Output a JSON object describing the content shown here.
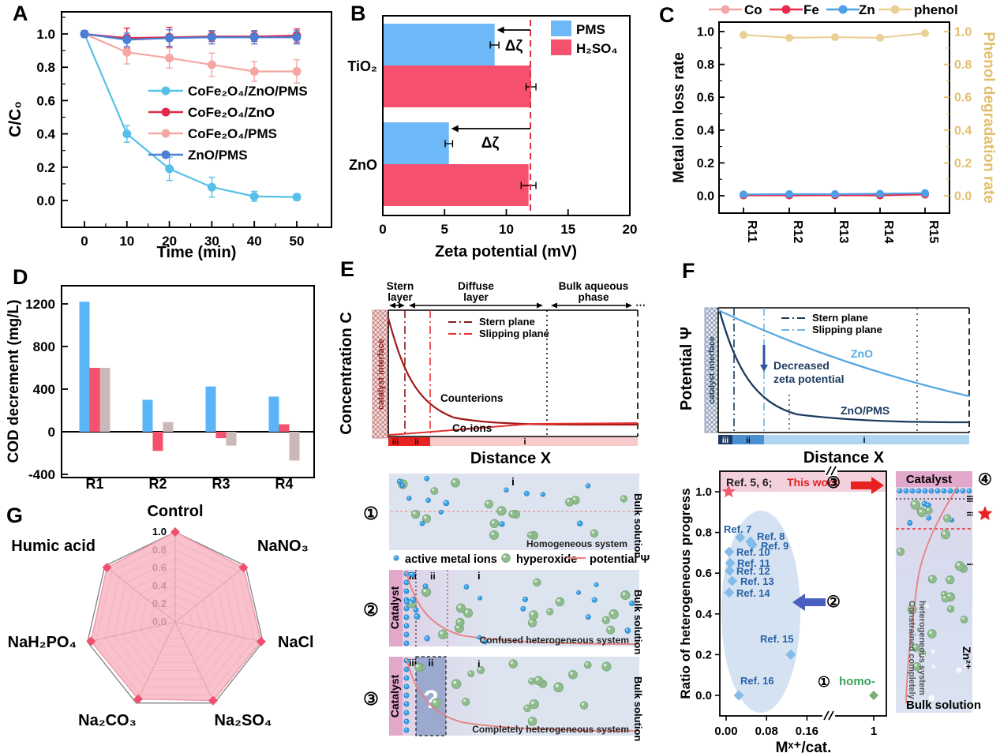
{
  "figure_labels": {
    "A": "A",
    "B": "B",
    "C": "C",
    "D": "D",
    "E": "E",
    "F": "F",
    "G": "G"
  },
  "colors": {
    "counterions": "#a31818",
    "co_ions": "#e23232",
    "stern_plane_red": "#8b1a1a",
    "slipping_plane_red": "#e83030",
    "zno": "#58a8e0",
    "zno_pms": "#1b3a5e",
    "stern_plane_blue": "#1b3a5e",
    "slipping_plane_blue": "#6db4e8",
    "metal_ion_dot": "#35a2ea",
    "hyperoxide_dot": "#8fbc8f",
    "potential_line": "#e88080",
    "dashed_guide": "#e03048",
    "zone_bar_red": "#e62222",
    "zone_bar_pink": "#f8caca",
    "zone_iii_navy": "#1b3a5e",
    "zone_ii_blue": "#4a90d0",
    "zone_i_light": "#aed5f2",
    "band_pink": "#f2d0dc",
    "highlight_red": "#e82020",
    "arrow_blue": "#4a5fc0",
    "ellipse_blue": "#cdddee",
    "strip_catalyst": "#e2a8cc",
    "question_zone": "#93a3cc"
  },
  "chart_data": [
    {
      "id": "A",
      "type": "line",
      "xlabel": "Time (min)",
      "ylabel": "C/C₀",
      "x": [
        0,
        10,
        20,
        30,
        40,
        50
      ],
      "xticks": [
        0,
        10,
        20,
        30,
        40,
        50
      ],
      "yticks": [
        0.0,
        0.2,
        0.4,
        0.6,
        0.8,
        1.0
      ],
      "ylim": [
        -0.08,
        1.12
      ],
      "series": [
        {
          "name": "CoFe₂O₄/ZnO/PMS",
          "color": "#56c1e8",
          "values": [
            1.0,
            0.4,
            0.19,
            0.08,
            0.025,
            0.02
          ],
          "err": [
            0.02,
            0.05,
            0.07,
            0.06,
            0.03,
            0.02
          ]
        },
        {
          "name": "CoFe₂O₄/ZnO",
          "color": "#e02948",
          "values": [
            1.0,
            0.975,
            0.98,
            0.985,
            0.985,
            0.99
          ],
          "err": [
            0.02,
            0.06,
            0.06,
            0.03,
            0.03,
            0.04
          ]
        },
        {
          "name": "CoFe₂O₄/PMS",
          "color": "#f4a7a3",
          "values": [
            1.0,
            0.89,
            0.855,
            0.815,
            0.775,
            0.775
          ],
          "err": [
            0.02,
            0.07,
            0.06,
            0.07,
            0.06,
            0.07
          ]
        },
        {
          "name": "ZnO/PMS",
          "color": "#4a7fd4",
          "values": [
            1.0,
            0.965,
            0.975,
            0.98,
            0.98,
            0.98
          ],
          "err": [
            0.02,
            0.04,
            0.05,
            0.04,
            0.04,
            0.04
          ]
        }
      ]
    },
    {
      "id": "B",
      "type": "barh",
      "xlabel": "Zeta potential (mV)",
      "xticks": [
        0,
        5,
        10,
        15,
        20
      ],
      "xlim": [
        0,
        20
      ],
      "categories": [
        "TiO₂",
        "ZnO"
      ],
      "series": [
        {
          "name": "PMS",
          "color": "#6db9f7",
          "values": [
            9.05,
            5.35
          ],
          "err": [
            0.35,
            0.3
          ]
        },
        {
          "name": "H₂SO₄",
          "color": "#f5506e",
          "values": [
            12.0,
            11.8
          ],
          "err": [
            0.4,
            0.6
          ]
        }
      ],
      "dash_line_x": 11.95,
      "delta_label": "Δζ"
    },
    {
      "id": "C",
      "type": "line",
      "categories": [
        "R11",
        "R12",
        "R13",
        "R14",
        "R15"
      ],
      "ylabel_left": "Metal ion loss rate",
      "ylabel_right": "Phenol degradation rate",
      "yticks": [
        0.0,
        0.2,
        0.4,
        0.6,
        0.8,
        1.0
      ],
      "right_axis_color": "#e2bf6e",
      "series": [
        {
          "name": "Co",
          "color": "#f2a8a8",
          "values": [
            0.004,
            0.003,
            0.004,
            0.003,
            0.004
          ],
          "axis": "left"
        },
        {
          "name": "Fe",
          "color": "#e82948",
          "values": [
            0.002,
            0.002,
            0.003,
            0.002,
            0.01
          ],
          "axis": "left"
        },
        {
          "name": "Zn",
          "color": "#4d9fe8",
          "values": [
            0.008,
            0.01,
            0.01,
            0.012,
            0.016
          ],
          "axis": "left"
        },
        {
          "name": "phenol",
          "color": "#e9d196",
          "values": [
            0.98,
            0.962,
            0.966,
            0.962,
            0.99
          ],
          "axis": "right"
        }
      ]
    },
    {
      "id": "D",
      "type": "bar",
      "ylabel": "COD decrement (mg/L)",
      "categories": [
        "R1",
        "R2",
        "R3",
        "R4"
      ],
      "yticks": [
        -400,
        0,
        400,
        800,
        1200
      ],
      "ylim": [
        -430,
        1400
      ],
      "series": [
        {
          "name": "series-blue",
          "color": "#5bb4f5",
          "values": [
            1220,
            300,
            425,
            330
          ]
        },
        {
          "name": "series-red",
          "color": "#f5506e",
          "values": [
            600,
            -180,
            -60,
            70
          ]
        },
        {
          "name": "series-gray",
          "color": "#cbb9b9",
          "values": [
            600,
            90,
            -130,
            -270
          ]
        }
      ]
    },
    {
      "id": "G",
      "type": "radar",
      "categories": [
        "Control",
        "NaNO₃",
        "NaCl",
        "Na₂SO₄",
        "Na₂CO₃",
        "NaH₂PO₄",
        "Humic acid"
      ],
      "values": [
        1.0,
        0.97,
        0.98,
        0.97,
        0.95,
        0.96,
        0.97
      ],
      "tick_labels": [
        "0.0",
        "0.2",
        "0.4",
        "0.6",
        "0.8",
        "1.0"
      ],
      "fill_color": "#f7b3c0",
      "marker_color": "#f24f6d"
    },
    {
      "id": "F_scatter",
      "type": "scatter",
      "xlabel": "Mˣ⁺/cat.",
      "ylabel": "Ratio of heterogeneous progress",
      "xtick_labels": [
        "0.00",
        "0.08",
        "0.16",
        "1"
      ],
      "xtick_values": [
        0.0,
        0.08,
        0.16,
        1
      ],
      "yticks": [
        0.0,
        0.2,
        0.4,
        0.6,
        0.8,
        1.0
      ],
      "band_label_prefix": "Ref. 5, 6; ",
      "band_label_highlight": "This work",
      "points": [
        {
          "label": "Ref. 7",
          "x": 0.028,
          "y": 0.775
        },
        {
          "label": "Ref. 8",
          "x": 0.048,
          "y": 0.756
        },
        {
          "label": "Ref. 9",
          "x": 0.052,
          "y": 0.74
        },
        {
          "label": "Ref. 10",
          "x": 0.006,
          "y": 0.705
        },
        {
          "label": "Ref. 11",
          "x": 0.008,
          "y": 0.65
        },
        {
          "label": "Ref. 12",
          "x": 0.007,
          "y": 0.612
        },
        {
          "label": "Ref. 13",
          "x": 0.012,
          "y": 0.562
        },
        {
          "label": "Ref. 14",
          "x": 0.006,
          "y": 0.505
        },
        {
          "label": "Ref. 15",
          "x": 0.128,
          "y": 0.2
        },
        {
          "label": "Ref. 16",
          "x": 0.025,
          "y": 0.0
        }
      ],
      "star_point": {
        "x": 0.005,
        "y": 1.0
      },
      "homo_point": {
        "label": "homo-",
        "x": 1,
        "y": 0.0
      },
      "annotations": {
        "n1": "①",
        "n2": "②",
        "n3": "③"
      },
      "point_color": "#85bbe8",
      "star_color": "#f2596e",
      "homo_color": "#7cae7c",
      "homo_text_color": "#3aa05a",
      "label_color": "#2862a8"
    }
  ],
  "panelE": {
    "ylabel": "Concentration C",
    "xlabel": "Distance X",
    "interface_label": "catalyst interface",
    "region_headers": [
      [
        "Stern",
        "layer"
      ],
      [
        "Diffuse",
        "layer"
      ],
      [
        "Bulk aqueous",
        "phase"
      ]
    ],
    "legend": [
      "Stern plane",
      "Slipping plane"
    ],
    "curve_labels": [
      "Counterions",
      "Co-ions"
    ],
    "zone_labels": [
      "iii",
      "ii",
      "i"
    ],
    "dots_symbol": "⋯",
    "schematic_legend": [
      "active metal ions",
      "hyperoxide",
      "potential Ψ"
    ],
    "schematics": [
      {
        "num": "①",
        "zone": "i",
        "caption": "Homogeneous system",
        "side": "Bulk solution"
      },
      {
        "num": "②",
        "catalyst": "Catalyst",
        "zones": [
          "iii",
          "ii",
          "i"
        ],
        "caption": "Confused heterogeneous system",
        "side": "Bulk solution"
      },
      {
        "num": "③",
        "catalyst": "Catalyst",
        "zones": [
          "iii",
          "ii",
          "i"
        ],
        "question": "?",
        "caption": "Completely heterogeneous system",
        "side": "Bulk solution"
      }
    ]
  },
  "panelF": {
    "ylabel": "Potential Ψ",
    "xlabel": "Distance X",
    "interface_label": "catalyst interface",
    "legend": [
      "Stern plane",
      "Slipping plane"
    ],
    "curve_labels": [
      "ZnO",
      "ZnO/PMS"
    ],
    "annotation": [
      "Decreased",
      "zeta potential"
    ],
    "zone_labels": [
      "iii",
      "ii",
      "i"
    ],
    "strip": {
      "num": "④",
      "header": "Catalyst",
      "zones": [
        "iii",
        "ii",
        "i"
      ],
      "rotated_caption": [
        "Constrained completely",
        "heterogeneous system"
      ],
      "ion_label": "Zn²⁺",
      "bottom_label": "Bulk solution"
    }
  }
}
